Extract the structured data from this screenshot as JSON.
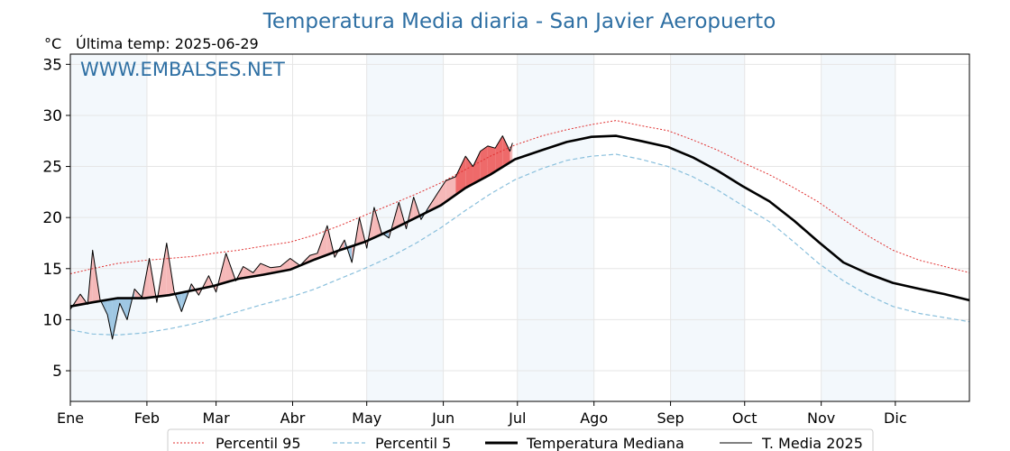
{
  "chart_data": {
    "type": "line",
    "title": "Temperatura Media diaria - San Javier Aeropuerto",
    "unit_label": "°C",
    "last_temp_label": "Última temp: 2025-06-29",
    "watermark": "WWW.EMBALSES.NET",
    "ylim": [
      2,
      36
    ],
    "yticks": [
      5,
      10,
      15,
      20,
      25,
      30,
      35
    ],
    "xlim": [
      1,
      365
    ],
    "x_ticks": [
      {
        "label": "Ene",
        "day": 1
      },
      {
        "label": "Feb",
        "day": 32
      },
      {
        "label": "Mar",
        "day": 60
      },
      {
        "label": "Abr",
        "day": 91
      },
      {
        "label": "May",
        "day": 121
      },
      {
        "label": "Jun",
        "day": 152
      },
      {
        "label": "Jul",
        "day": 182
      },
      {
        "label": "Ago",
        "day": 213
      },
      {
        "label": "Sep",
        "day": 244
      },
      {
        "label": "Oct",
        "day": 274
      },
      {
        "label": "Nov",
        "day": 305
      },
      {
        "label": "Dic",
        "day": 335
      }
    ],
    "grid": true,
    "shaded_month_bands": true,
    "legend_position": "bottom",
    "series": [
      {
        "name": "Percentil 95",
        "color": "#e03030",
        "style": "dotted",
        "x": [
          1,
          10,
          20,
          31,
          41,
          51,
          59,
          69,
          79,
          90,
          100,
          110,
          120,
          131,
          141,
          151,
          161,
          171,
          181,
          192,
          202,
          212,
          222,
          232,
          243,
          253,
          263,
          273,
          284,
          294,
          304,
          314,
          324,
          334,
          345,
          355,
          365
        ],
        "values": [
          14.5,
          15.0,
          15.5,
          15.8,
          16.0,
          16.2,
          16.5,
          16.8,
          17.2,
          17.6,
          18.3,
          19.2,
          20.2,
          21.3,
          22.3,
          23.4,
          24.7,
          26.0,
          27.1,
          28.0,
          28.6,
          29.1,
          29.5,
          29.0,
          28.5,
          27.6,
          26.6,
          25.4,
          24.2,
          22.9,
          21.5,
          19.8,
          18.2,
          16.8,
          15.8,
          15.2,
          14.6
        ]
      },
      {
        "name": "Percentil 5",
        "color": "#88bfdc",
        "style": "dashed",
        "x": [
          1,
          10,
          20,
          31,
          41,
          51,
          59,
          69,
          79,
          90,
          100,
          110,
          120,
          131,
          141,
          151,
          161,
          171,
          181,
          192,
          202,
          212,
          222,
          232,
          243,
          253,
          263,
          273,
          284,
          294,
          304,
          314,
          324,
          334,
          345,
          355,
          365
        ],
        "values": [
          9.0,
          8.6,
          8.5,
          8.7,
          9.1,
          9.6,
          10.1,
          10.8,
          11.5,
          12.2,
          13.0,
          14.0,
          15.0,
          16.2,
          17.5,
          19.0,
          20.7,
          22.3,
          23.7,
          24.8,
          25.6,
          26.0,
          26.2,
          25.7,
          25.0,
          24.0,
          22.7,
          21.2,
          19.6,
          17.6,
          15.5,
          13.8,
          12.4,
          11.3,
          10.6,
          10.2,
          9.8
        ]
      },
      {
        "name": "Temperatura Mediana",
        "color": "#000000",
        "style": "bold",
        "x": [
          1,
          10,
          20,
          31,
          41,
          51,
          59,
          69,
          79,
          90,
          100,
          110,
          120,
          131,
          141,
          151,
          161,
          171,
          181,
          192,
          202,
          212,
          222,
          232,
          243,
          253,
          263,
          273,
          284,
          294,
          304,
          314,
          324,
          334,
          345,
          355,
          365
        ],
        "values": [
          11.3,
          11.7,
          12.1,
          12.1,
          12.4,
          12.9,
          13.3,
          14.0,
          14.4,
          14.9,
          15.9,
          16.8,
          17.6,
          18.8,
          20.0,
          21.2,
          22.9,
          24.2,
          25.7,
          26.6,
          27.4,
          27.9,
          28.0,
          27.5,
          26.9,
          25.9,
          24.6,
          23.1,
          21.6,
          19.7,
          17.6,
          15.6,
          14.5,
          13.6,
          13.0,
          12.5,
          11.9
        ]
      },
      {
        "name": "T. Media 2025",
        "color": "#000000",
        "style": "thin",
        "x": [
          1,
          5,
          8,
          10,
          13,
          16,
          18,
          21,
          24,
          27,
          30,
          33,
          36,
          40,
          43,
          46,
          50,
          53,
          57,
          60,
          64,
          68,
          71,
          75,
          78,
          82,
          86,
          90,
          94,
          98,
          101,
          105,
          108,
          112,
          115,
          118,
          121,
          124,
          127,
          130,
          134,
          137,
          140,
          143,
          146,
          150,
          153,
          157,
          161,
          164,
          167,
          170,
          173,
          176,
          179,
          180
        ],
        "values": [
          11.0,
          12.5,
          11.5,
          16.8,
          12.0,
          10.5,
          8.1,
          11.6,
          10.0,
          13.0,
          12.2,
          16.0,
          11.7,
          17.5,
          12.8,
          10.8,
          13.5,
          12.4,
          14.3,
          12.7,
          16.5,
          13.8,
          15.2,
          14.6,
          15.5,
          15.1,
          15.2,
          16.0,
          15.3,
          16.3,
          16.5,
          19.2,
          16.1,
          17.8,
          15.6,
          20.0,
          17.0,
          21.0,
          18.5,
          18.0,
          21.5,
          18.9,
          22.0,
          19.8,
          21.0,
          22.5,
          23.6,
          24.0,
          26.0,
          25.0,
          26.5,
          27.0,
          26.8,
          28.0,
          26.5,
          27.3
        ]
      }
    ]
  }
}
